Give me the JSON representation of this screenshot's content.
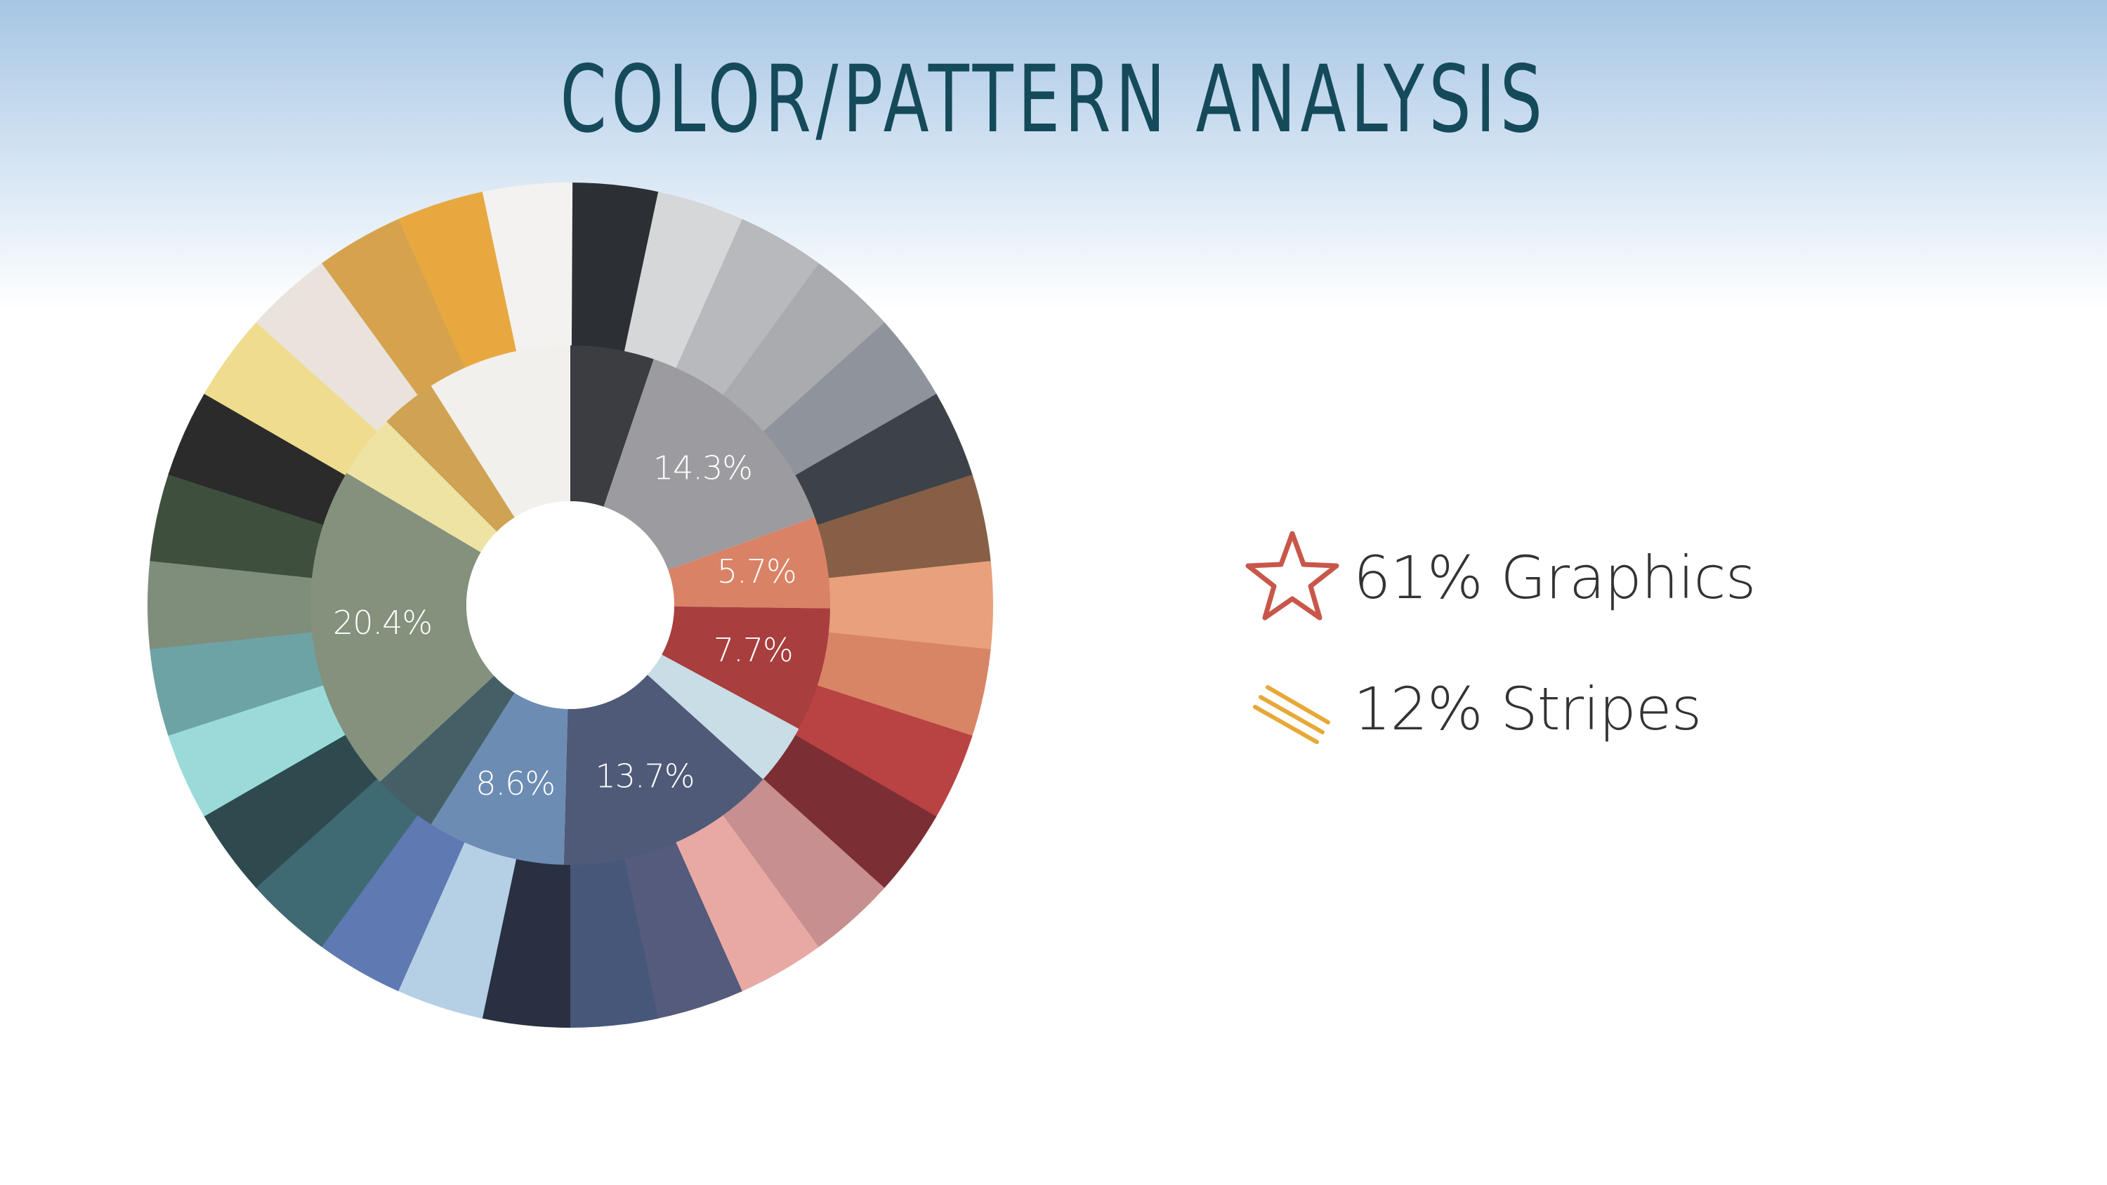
{
  "title": "COLOR/PATTERN ANALYSIS",
  "chart_data": {
    "type": "pie",
    "style": "donut with inner summary ring and outer detailed color ring",
    "inner_ring": [
      {
        "value": 14.3,
        "label": "14.3%",
        "color": "#9c9b9f"
      },
      {
        "value": 5.7,
        "label": "5.7%",
        "color": "#d98266"
      },
      {
        "value": 7.7,
        "label": "7.7%",
        "color": "#a83e3e"
      },
      {
        "value": 13.7,
        "label": "13.7%",
        "color": "#4f5a78"
      },
      {
        "value": 8.6,
        "label": "8.6%",
        "color": "#6d8cb3"
      },
      {
        "value": 20.4,
        "label": "20.4%",
        "color": "#84917d"
      }
    ],
    "inner_ring_unlabeled": [
      {
        "value": 5.2,
        "color": "#3c3d41"
      },
      {
        "value": 3.8,
        "color": "#c9dde6"
      },
      {
        "value": 4.1,
        "color": "#446066"
      },
      {
        "value": 4.0,
        "color": "#efe3a3"
      },
      {
        "value": 3.5,
        "color": "#cfa353"
      },
      {
        "value": 9.0,
        "color": "#f2f0ec"
      }
    ],
    "outer_ring_colors": [
      "#2c3034",
      "#d6d7d9",
      "#b8b9bd",
      "#a9abaf",
      "#8f939b",
      "#3d4248",
      "#865f46",
      "#e8a07d",
      "#d88566",
      "#b94242",
      "#7b2f34",
      "#c78f8f",
      "#e8a9a3",
      "#545b7c",
      "#46577a",
      "#283041",
      "#b5cfe4",
      "#5f79b3",
      "#3f6a73",
      "#2f4a4f",
      "#9adbd9",
      "#6ea3a6",
      "#7f8d7b",
      "#3f4f3d",
      "#2b2b2b",
      "#efdc8e",
      "#e9e3dc",
      "#d6a24e",
      "#e8a840",
      "#f3f2f0"
    ]
  },
  "legend": [
    {
      "icon": "star-icon",
      "text": "61% Graphics",
      "color": "#c8574a"
    },
    {
      "icon": "stripes-icon",
      "text": "12% Stripes",
      "color": "#e8a838"
    }
  ]
}
